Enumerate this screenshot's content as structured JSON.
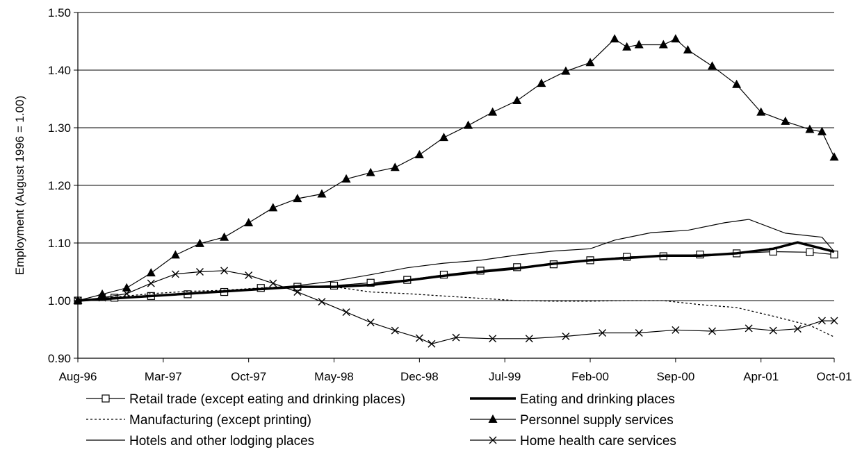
{
  "chart_data": {
    "type": "line",
    "title": "",
    "xlabel": "",
    "ylabel": "Employment (August 1996 = 1.00)",
    "ylim": [
      0.9,
      1.5
    ],
    "yticks": [
      0.9,
      1.0,
      1.1,
      1.2,
      1.3,
      1.4,
      1.5
    ],
    "ytick_labels": [
      "0.90",
      "1.00",
      "1.10",
      "1.20",
      "1.30",
      "1.40",
      "1.50"
    ],
    "x_start": "1996-08",
    "x_end": "2001-10",
    "xtick_labels": [
      "Aug-96",
      "Mar-97",
      "Oct-97",
      "May-98",
      "Dec-98",
      "Jul-99",
      "Feb-00",
      "Sep-00",
      "Apr-01",
      "Oct-01"
    ],
    "xtick_dates": [
      "1996-08",
      "1997-03",
      "1997-10",
      "1998-05",
      "1998-12",
      "1999-07",
      "2000-02",
      "2000-09",
      "2001-04",
      "2001-10"
    ],
    "grid": "horizontal",
    "legend_position": "bottom",
    "series": [
      {
        "name": "Retail trade (except eating and drinking places)",
        "style": "thin-square",
        "x": [
          "1996-08",
          "1996-11",
          "1997-02",
          "1997-05",
          "1997-08",
          "1997-11",
          "1998-02",
          "1998-05",
          "1998-08",
          "1998-11",
          "1999-02",
          "1999-05",
          "1999-08",
          "1999-11",
          "2000-02",
          "2000-05",
          "2000-08",
          "2000-11",
          "2001-02",
          "2001-05",
          "2001-08",
          "2001-10"
        ],
        "values": [
          1.0,
          1.005,
          1.008,
          1.011,
          1.015,
          1.022,
          1.024,
          1.026,
          1.031,
          1.036,
          1.045,
          1.052,
          1.058,
          1.063,
          1.07,
          1.076,
          1.077,
          1.08,
          1.082,
          1.085,
          1.084,
          1.08
        ]
      },
      {
        "name": "Eating and drinking places",
        "style": "thick",
        "x": [
          "1996-08",
          "1996-11",
          "1997-02",
          "1997-05",
          "1997-08",
          "1997-11",
          "1998-02",
          "1998-05",
          "1998-08",
          "1998-11",
          "1999-02",
          "1999-05",
          "1999-08",
          "1999-11",
          "2000-02",
          "2000-05",
          "2000-08",
          "2000-11",
          "2001-02",
          "2001-05",
          "2001-07",
          "2001-10"
        ],
        "values": [
          1.0,
          1.004,
          1.008,
          1.012,
          1.016,
          1.02,
          1.024,
          1.024,
          1.027,
          1.035,
          1.043,
          1.05,
          1.056,
          1.064,
          1.07,
          1.074,
          1.078,
          1.078,
          1.082,
          1.09,
          1.101,
          1.085
        ]
      },
      {
        "name": "Manufacturing (except printing)",
        "style": "dotted",
        "x": [
          "1996-08",
          "1996-11",
          "1997-02",
          "1997-05",
          "1997-08",
          "1997-11",
          "1998-02",
          "1998-05",
          "1998-08",
          "1998-11",
          "1999-02",
          "1999-05",
          "1999-08",
          "1999-11",
          "2000-02",
          "2000-05",
          "2000-08",
          "2000-11",
          "2001-02",
          "2001-05",
          "2001-08",
          "2001-10"
        ],
        "values": [
          1.0,
          1.006,
          1.012,
          1.016,
          1.018,
          1.022,
          1.025,
          1.024,
          1.015,
          1.012,
          1.008,
          1.004,
          1.0,
          0.999,
          0.999,
          1.0,
          1.0,
          0.993,
          0.988,
          0.973,
          0.957,
          0.937
        ]
      },
      {
        "name": "Personnel supply services",
        "style": "triangle",
        "x": [
          "1996-08",
          "1996-10",
          "1996-12",
          "1997-02",
          "1997-04",
          "1997-06",
          "1997-08",
          "1997-10",
          "1997-12",
          "1998-02",
          "1998-04",
          "1998-06",
          "1998-08",
          "1998-10",
          "1998-12",
          "1999-02",
          "1999-04",
          "1999-06",
          "1999-08",
          "1999-10",
          "1999-12",
          "2000-02",
          "2000-04",
          "2000-05",
          "2000-06",
          "2000-08",
          "2000-09",
          "2000-10",
          "2000-12",
          "2001-02",
          "2001-04",
          "2001-06",
          "2001-08",
          "2001-09",
          "2001-10"
        ],
        "values": [
          1.0,
          1.011,
          1.022,
          1.048,
          1.079,
          1.099,
          1.11,
          1.135,
          1.161,
          1.177,
          1.185,
          1.211,
          1.222,
          1.231,
          1.253,
          1.283,
          1.304,
          1.327,
          1.347,
          1.377,
          1.398,
          1.413,
          1.454,
          1.44,
          1.444,
          1.444,
          1.454,
          1.435,
          1.407,
          1.375,
          1.327,
          1.311,
          1.297,
          1.293,
          1.249
        ]
      },
      {
        "name": "Hotels and other lodging places",
        "style": "thin",
        "x": [
          "1996-08",
          "1996-11",
          "1997-02",
          "1997-05",
          "1997-08",
          "1997-11",
          "1998-02",
          "1998-05",
          "1998-08",
          "1998-11",
          "1999-02",
          "1999-05",
          "1999-08",
          "1999-11",
          "2000-02",
          "2000-04",
          "2000-07",
          "2000-10",
          "2001-01",
          "2001-03",
          "2001-06",
          "2001-09",
          "2001-10"
        ],
        "values": [
          1.0,
          1.004,
          1.008,
          1.012,
          1.016,
          1.021,
          1.026,
          1.034,
          1.045,
          1.057,
          1.065,
          1.07,
          1.079,
          1.086,
          1.09,
          1.105,
          1.118,
          1.122,
          1.135,
          1.141,
          1.117,
          1.11,
          1.085
        ]
      },
      {
        "name": "Home health care services",
        "style": "cross",
        "x": [
          "1996-08",
          "1996-10",
          "1996-12",
          "1997-02",
          "1997-04",
          "1997-06",
          "1997-08",
          "1997-10",
          "1997-12",
          "1998-02",
          "1998-04",
          "1998-06",
          "1998-08",
          "1998-10",
          "1998-12",
          "1999-01",
          "1999-03",
          "1999-06",
          "1999-09",
          "1999-12",
          "2000-03",
          "2000-06",
          "2000-09",
          "2000-12",
          "2001-03",
          "2001-05",
          "2001-07",
          "2001-09",
          "2001-10"
        ],
        "values": [
          1.0,
          1.005,
          1.012,
          1.03,
          1.046,
          1.05,
          1.052,
          1.044,
          1.03,
          1.015,
          0.998,
          0.98,
          0.962,
          0.948,
          0.935,
          0.925,
          0.936,
          0.934,
          0.934,
          0.938,
          0.944,
          0.944,
          0.949,
          0.947,
          0.952,
          0.948,
          0.951,
          0.965,
          0.965
        ]
      }
    ]
  }
}
